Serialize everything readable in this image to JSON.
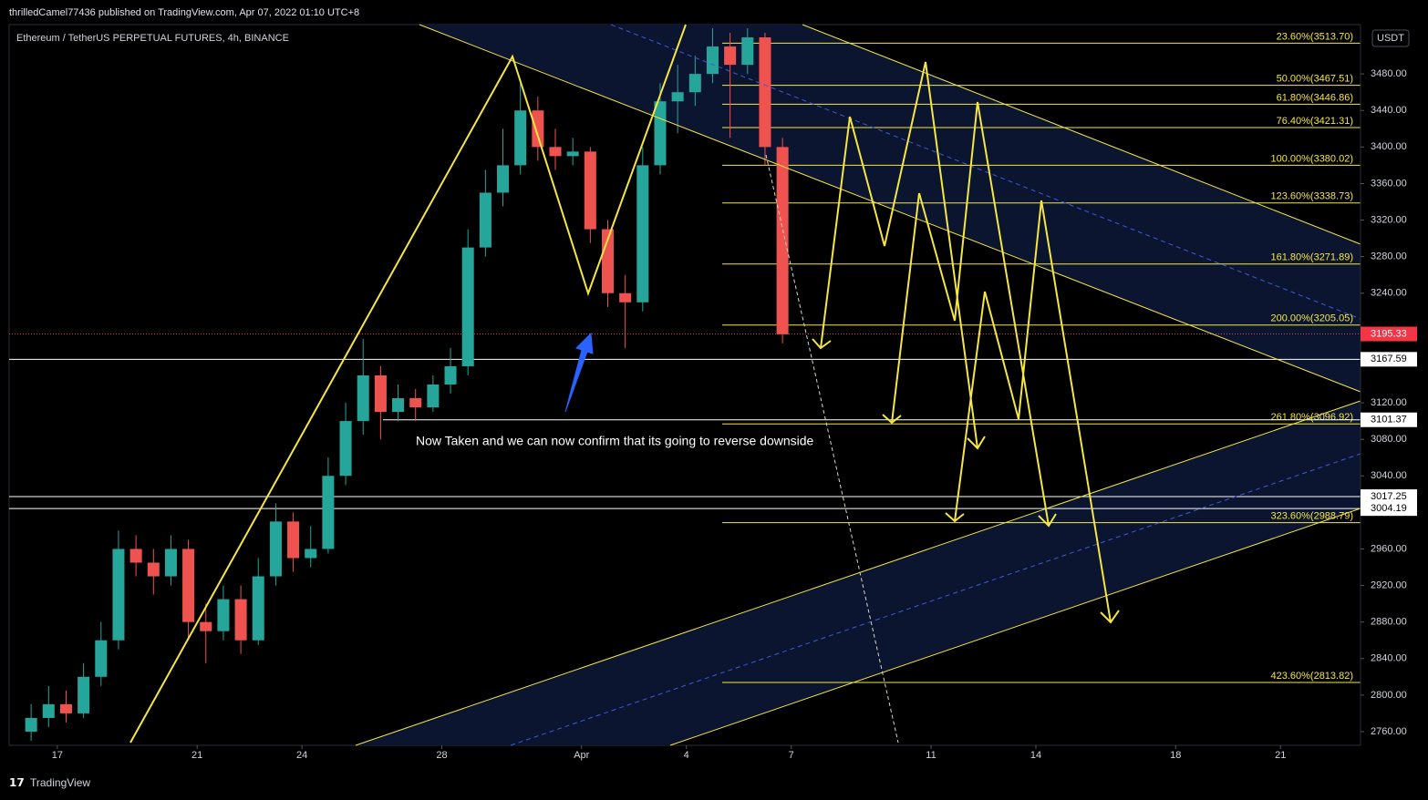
{
  "header": {
    "published": "thrilledCamel77436 published on TradingView.com, Apr 07, 2022 01:10 UTC+8"
  },
  "footer": {
    "brand": "TradingView"
  },
  "chart_data": {
    "type": "candlestick",
    "title": "Ethereum / TetherUS PERPETUAL FUTURES, 4h, BINANCE",
    "currency": "USDT",
    "annotation": "Now Taken and we can now confirm that its going to reverse downside",
    "up_color": "#26a69a",
    "down_color": "#ef5350",
    "x": [
      -0.75,
      -0.25,
      0.25,
      0.75,
      1.25,
      1.75,
      2.25,
      2.75,
      3.25,
      3.75,
      4.25,
      4.75,
      5.25,
      5.75,
      6.25,
      6.75,
      7.25,
      7.75,
      8.25,
      8.75,
      9.25,
      9.75,
      10.25,
      10.75,
      11.25,
      11.75,
      12.25,
      12.75,
      13.25,
      13.75,
      14.25,
      14.75,
      15.25,
      15.75,
      16.25,
      16.75,
      17.25,
      17.75,
      18.25,
      18.75,
      19.25,
      19.75,
      20.25,
      20.75
    ],
    "open": [
      2760,
      2775,
      2790,
      2780,
      2820,
      2860,
      2960,
      2945,
      2930,
      2960,
      2880,
      2870,
      2905,
      2860,
      2930,
      2990,
      2950,
      2960,
      3040,
      3100,
      3150,
      3110,
      3125,
      3115,
      3140,
      3160,
      3290,
      3350,
      3380,
      3440,
      3400,
      3390,
      3395,
      3310,
      3240,
      3230,
      3380,
      3450,
      3460,
      3480,
      3510,
      3490,
      3520,
      3400
    ],
    "high": [
      2790,
      2810,
      2805,
      2835,
      2880,
      2980,
      2975,
      2960,
      2975,
      2970,
      2900,
      2920,
      2920,
      2950,
      3010,
      3000,
      2985,
      3060,
      3120,
      3190,
      3160,
      3140,
      3135,
      3150,
      3180,
      3310,
      3375,
      3420,
      3470,
      3455,
      3420,
      3410,
      3400,
      3320,
      3260,
      3400,
      3470,
      3490,
      3500,
      3530,
      3525,
      3530,
      3525,
      3410
    ],
    "low": [
      2750,
      2765,
      2770,
      2775,
      2810,
      2850,
      2930,
      2910,
      2920,
      2860,
      2835,
      2860,
      2845,
      2855,
      2920,
      2935,
      2940,
      2955,
      3030,
      3085,
      3080,
      3100,
      3100,
      3110,
      3130,
      3150,
      3280,
      3335,
      3370,
      3385,
      3375,
      3380,
      3295,
      3225,
      3180,
      3220,
      3370,
      3415,
      3445,
      3470,
      3410,
      3480,
      3380,
      3185
    ],
    "close": [
      2775,
      2790,
      2780,
      2820,
      2860,
      2960,
      2945,
      2930,
      2960,
      2880,
      2870,
      2905,
      2860,
      2930,
      2990,
      2950,
      2960,
      3040,
      3100,
      3150,
      3110,
      3125,
      3115,
      3140,
      3160,
      3290,
      3350,
      3380,
      3440,
      3400,
      3390,
      3395,
      3310,
      3240,
      3230,
      3380,
      3450,
      3460,
      3480,
      3510,
      3490,
      3520,
      3400,
      3195
    ],
    "xlim": [
      -1.38,
      37.29
    ],
    "xticks": [
      {
        "value": 0,
        "label": "17"
      },
      {
        "value": 4,
        "label": "21"
      },
      {
        "value": 7,
        "label": "24"
      },
      {
        "value": 11,
        "label": "28"
      },
      {
        "value": 15,
        "label": "Apr"
      },
      {
        "value": 18,
        "label": "4"
      },
      {
        "value": 21,
        "label": "7"
      },
      {
        "value": 25,
        "label": "11"
      },
      {
        "value": 28,
        "label": "14"
      },
      {
        "value": 32,
        "label": "18"
      },
      {
        "value": 35,
        "label": "21"
      }
    ],
    "ylim": [
      2745,
      3534
    ],
    "yticks": [
      {
        "value": 3480,
        "label": "3480.00"
      },
      {
        "value": 3440,
        "label": "3440.00"
      },
      {
        "value": 3400,
        "label": "3400.00"
      },
      {
        "value": 3360,
        "label": "3360.00"
      },
      {
        "value": 3320,
        "label": "3320.00"
      },
      {
        "value": 3280,
        "label": "3280.00"
      },
      {
        "value": 3240,
        "label": "3240.00"
      },
      {
        "value": 3120,
        "label": "3120.00"
      },
      {
        "value": 3080,
        "label": "3080.00"
      },
      {
        "value": 3040,
        "label": "3040.00"
      },
      {
        "value": 2960,
        "label": "2960.00"
      },
      {
        "value": 2920,
        "label": "2920.00"
      },
      {
        "value": 2880,
        "label": "2880.00"
      },
      {
        "value": 2840,
        "label": "2840.00"
      },
      {
        "value": 2800,
        "label": "2800.00"
      },
      {
        "value": 2760,
        "label": "2760.00"
      }
    ],
    "fib_color": "#f5e642",
    "fib_levels": [
      {
        "label": "23.60%(3513.70)",
        "price": 3513.7
      },
      {
        "label": "50.00%(3467.51)",
        "price": 3467.51
      },
      {
        "label": "61.80%(3446.86)",
        "price": 3446.86
      },
      {
        "label": "76.40%(3421.31)",
        "price": 3421.31
      },
      {
        "label": "100.00%(3380.02)",
        "price": 3380.02
      },
      {
        "label": "123.60%(3338.73)",
        "price": 3338.73
      },
      {
        "label": "161.80%(3271.89)",
        "price": 3271.89
      },
      {
        "label": "200.00%(3205.05)",
        "price": 3205.05
      },
      {
        "label": "261.80%(3096.92)",
        "price": 3096.92
      },
      {
        "label": "323.60%(2988.79)",
        "price": 2988.79
      },
      {
        "label": "423.60%(2813.82)",
        "price": 2813.82
      }
    ],
    "horizontal_lines": [
      {
        "value": 3167.59,
        "label": "3167.59"
      },
      {
        "value": 3101.37,
        "label": "3101.37"
      },
      {
        "value": 3017.25,
        "label": "3017.25"
      },
      {
        "value": 3004.19,
        "label": "3004.19"
      }
    ],
    "last_price": {
      "value": 3195.33,
      "label": "3195.33",
      "color": "#f23645"
    }
  }
}
